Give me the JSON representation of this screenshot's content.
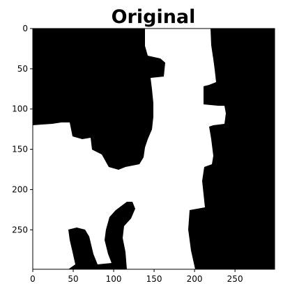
{
  "chart_data": {
    "type": "heatmap",
    "title": "Original",
    "xlabel": "",
    "ylabel": "",
    "xlim": [
      0,
      299
    ],
    "ylim": [
      299,
      0
    ],
    "x_ticks": [
      0,
      50,
      100,
      150,
      200,
      250
    ],
    "y_ticks": [
      0,
      50,
      100,
      150,
      200,
      250
    ],
    "colormap": "binary",
    "colors": {
      "foreground": "#ffffff",
      "background": "#000000"
    },
    "grid": false
  }
}
